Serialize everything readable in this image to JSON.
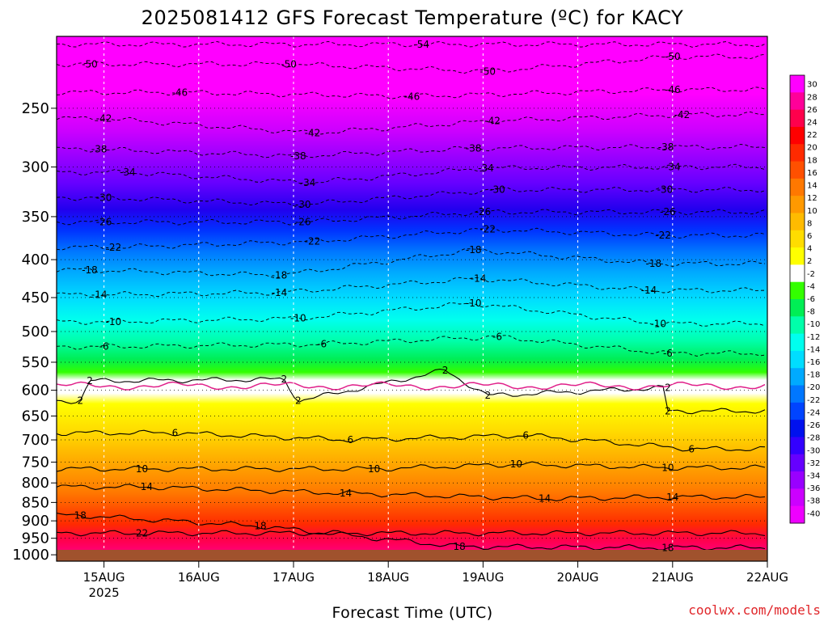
{
  "title": "2025081412 GFS Forecast Temperature (ºC) for KACY",
  "credit": "coolwx.com/models",
  "chart_data": {
    "type": "heatmap",
    "title": "2025081412 GFS Forecast Temperature (ºC) for KACY",
    "xlabel": "Forecast Time (UTC)",
    "ylabel": "",
    "x_ticks": [
      {
        "label": "15AUG",
        "sub": "2025"
      },
      {
        "label": "16AUG",
        "sub": ""
      },
      {
        "label": "17AUG",
        "sub": ""
      },
      {
        "label": "18AUG",
        "sub": ""
      },
      {
        "label": "19AUG",
        "sub": ""
      },
      {
        "label": "20AUG",
        "sub": ""
      },
      {
        "label": "21AUG",
        "sub": ""
      },
      {
        "label": "22AUG",
        "sub": ""
      }
    ],
    "x_range_days": [
      -0.5,
      7
    ],
    "y_axis": "pressure_log",
    "ylim": [
      1020,
      200
    ],
    "y_ticks": [
      250,
      300,
      350,
      400,
      450,
      500,
      550,
      600,
      650,
      700,
      750,
      800,
      850,
      900,
      950,
      1000
    ],
    "colorbar": {
      "ticks": [
        30,
        28,
        26,
        24,
        22,
        20,
        18,
        16,
        14,
        12,
        10,
        8,
        6,
        4,
        2,
        -2,
        -4,
        -6,
        -8,
        -10,
        -12,
        -14,
        -16,
        -18,
        -20,
        -22,
        -24,
        -26,
        -28,
        -30,
        -32,
        -34,
        -36,
        -38,
        -40
      ],
      "colors": [
        "#ff00ff",
        "#ff0099",
        "#ff004c",
        "#ff0000",
        "#ff2a00",
        "#ff5000",
        "#ff7800",
        "#ff9900",
        "#ffbb00",
        "#ffdd00",
        "#ffff00",
        "#ffffff",
        "#33ff00",
        "#00ee55",
        "#00ffaa",
        "#00ffee",
        "#00ddff",
        "#00aaff",
        "#0077ff",
        "#0044ff",
        "#0011ee",
        "#3300ff",
        "#6600ff",
        "#9900ff",
        "#cc00ff",
        "#ee00ff"
      ]
    },
    "contour_labels": [
      {
        "text": "-54",
        "day": 3.35,
        "p": 205
      },
      {
        "text": "-50",
        "day": -0.15,
        "p": 218
      },
      {
        "text": "-50",
        "day": 1.95,
        "p": 218
      },
      {
        "text": "-50",
        "day": 4.05,
        "p": 223
      },
      {
        "text": "-50",
        "day": 6.0,
        "p": 213
      },
      {
        "text": "-46",
        "day": 0.8,
        "p": 238
      },
      {
        "text": "-46",
        "day": 3.25,
        "p": 241
      },
      {
        "text": "-46",
        "day": 6.0,
        "p": 236
      },
      {
        "text": "-42",
        "day": 0.0,
        "p": 258
      },
      {
        "text": "-42",
        "day": 2.2,
        "p": 270
      },
      {
        "text": "-42",
        "day": 4.1,
        "p": 260
      },
      {
        "text": "-42",
        "day": 6.1,
        "p": 255
      },
      {
        "text": "-38",
        "day": -0.05,
        "p": 284
      },
      {
        "text": "-38",
        "day": 2.05,
        "p": 290
      },
      {
        "text": "-38",
        "day": 3.9,
        "p": 283
      },
      {
        "text": "-38",
        "day": 5.93,
        "p": 282
      },
      {
        "text": "-34",
        "day": 0.25,
        "p": 305
      },
      {
        "text": "-34",
        "day": 2.15,
        "p": 315
      },
      {
        "text": "-34",
        "day": 4.03,
        "p": 301
      },
      {
        "text": "-34",
        "day": 6.0,
        "p": 300
      },
      {
        "text": "-30",
        "day": 0.0,
        "p": 330
      },
      {
        "text": "-30",
        "day": 2.1,
        "p": 337
      },
      {
        "text": "-30",
        "day": 4.15,
        "p": 322
      },
      {
        "text": "-30",
        "day": 5.92,
        "p": 322
      },
      {
        "text": "-26",
        "day": 0.0,
        "p": 356
      },
      {
        "text": "-26",
        "day": 2.1,
        "p": 356
      },
      {
        "text": "-26",
        "day": 4.0,
        "p": 345
      },
      {
        "text": "-26",
        "day": 5.95,
        "p": 345
      },
      {
        "text": "-22",
        "day": 0.1,
        "p": 385
      },
      {
        "text": "-22",
        "day": 2.2,
        "p": 378
      },
      {
        "text": "-22",
        "day": 4.05,
        "p": 364
      },
      {
        "text": "-22",
        "day": 5.9,
        "p": 371
      },
      {
        "text": "-18",
        "day": -0.15,
        "p": 413
      },
      {
        "text": "-18",
        "day": 1.85,
        "p": 420
      },
      {
        "text": "-18",
        "day": 3.9,
        "p": 388
      },
      {
        "text": "-18",
        "day": 5.8,
        "p": 405
      },
      {
        "text": "-14",
        "day": -0.05,
        "p": 446
      },
      {
        "text": "-14",
        "day": 1.85,
        "p": 443
      },
      {
        "text": "-14",
        "day": 3.95,
        "p": 424
      },
      {
        "text": "-14",
        "day": 5.75,
        "p": 440
      },
      {
        "text": "-10",
        "day": 0.1,
        "p": 485
      },
      {
        "text": "-10",
        "day": 2.05,
        "p": 480
      },
      {
        "text": "-10",
        "day": 3.9,
        "p": 458
      },
      {
        "text": "-10",
        "day": 5.85,
        "p": 488
      },
      {
        "text": "-6",
        "day": 0.0,
        "p": 524
      },
      {
        "text": "-6",
        "day": 2.3,
        "p": 520
      },
      {
        "text": "-6",
        "day": 4.15,
        "p": 508
      },
      {
        "text": "-6",
        "day": 5.95,
        "p": 535
      },
      {
        "text": "2",
        "day": -0.15,
        "p": 583
      },
      {
        "text": "2",
        "day": 1.9,
        "p": 580
      },
      {
        "text": "2",
        "day": 3.6,
        "p": 564
      },
      {
        "text": "2",
        "day": 5.95,
        "p": 595
      },
      {
        "text": "2",
        "day": -0.25,
        "p": 620
      },
      {
        "text": "2",
        "day": 2.05,
        "p": 620
      },
      {
        "text": "2",
        "day": 4.05,
        "p": 610
      },
      {
        "text": "2",
        "day": 5.95,
        "p": 640
      },
      {
        "text": "6",
        "day": 0.75,
        "p": 685
      },
      {
        "text": "6",
        "day": 2.6,
        "p": 700
      },
      {
        "text": "6",
        "day": 4.45,
        "p": 690
      },
      {
        "text": "6",
        "day": 6.2,
        "p": 720
      },
      {
        "text": "10",
        "day": 0.4,
        "p": 766
      },
      {
        "text": "10",
        "day": 2.85,
        "p": 766
      },
      {
        "text": "10",
        "day": 4.35,
        "p": 755
      },
      {
        "text": "10",
        "day": 5.95,
        "p": 763
      },
      {
        "text": "14",
        "day": 0.45,
        "p": 810
      },
      {
        "text": "14",
        "day": 2.55,
        "p": 826
      },
      {
        "text": "14",
        "day": 4.65,
        "p": 840
      },
      {
        "text": "14",
        "day": 6.0,
        "p": 836
      },
      {
        "text": "18",
        "day": -0.25,
        "p": 885
      },
      {
        "text": "18",
        "day": 1.65,
        "p": 915
      },
      {
        "text": "18",
        "day": 3.75,
        "p": 975
      },
      {
        "text": "18",
        "day": 5.95,
        "p": 978
      },
      {
        "text": "22",
        "day": 0.4,
        "p": 935
      }
    ]
  }
}
